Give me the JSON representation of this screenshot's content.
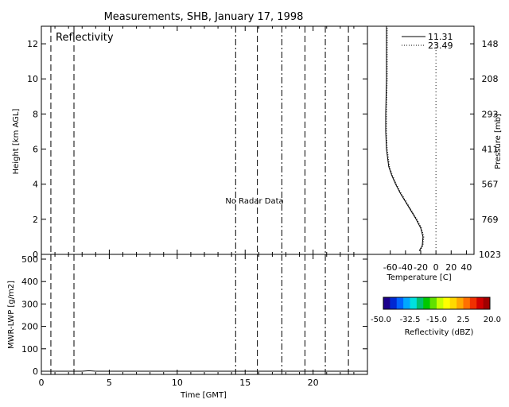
{
  "title": "Measurements, SHB, January 17, 1998",
  "chart_data": [
    {
      "type": "line",
      "panel": "reflectivity",
      "label": "Reflectivity",
      "annotation": "No Radar Data",
      "xlabel": "",
      "ylabel": "Height [km AGL]",
      "xlim": [
        0,
        24
      ],
      "ylim": [
        0,
        13
      ],
      "yticks": [
        0,
        2,
        4,
        6,
        8,
        10,
        12
      ],
      "dashed_lines_x": [
        0.7,
        2.4,
        14.3,
        15.9,
        17.7,
        19.4,
        20.9,
        22.6
      ]
    },
    {
      "type": "line",
      "panel": "lwp",
      "xlabel": "Time [GMT]",
      "ylabel": "MWR-LWP [g/m2]",
      "xlim": [
        0,
        24
      ],
      "ylim": [
        0,
        500
      ],
      "xticks": [
        0,
        5,
        10,
        15,
        20
      ],
      "yticks": [
        0,
        100,
        200,
        300,
        400,
        500
      ],
      "dashed_lines_x": [
        0.7,
        2.4,
        14.3,
        15.9,
        17.7,
        19.4,
        20.9,
        22.6
      ],
      "series": [
        {
          "x": [
            0,
            3,
            3.5,
            4,
            6,
            8,
            10,
            12,
            14,
            16,
            18,
            20,
            22,
            24
          ],
          "values": [
            0,
            0,
            2,
            0,
            0,
            0,
            0,
            0,
            0,
            0,
            0,
            0,
            0,
            0
          ]
        }
      ]
    },
    {
      "type": "line",
      "panel": "temperature-profile",
      "xlabel": "Temperature [C]",
      "ylabel": "",
      "y2label": "Pressure [mb]",
      "xlim": [
        -90,
        50
      ],
      "ylim": [
        0,
        13
      ],
      "xticks": [
        -60,
        -40,
        -20,
        0,
        20,
        40
      ],
      "pressure_ticks": [
        {
          "h": 0,
          "label": "1023"
        },
        {
          "h": 2,
          "label": "769"
        },
        {
          "h": 4,
          "label": "567"
        },
        {
          "h": 6,
          "label": "411"
        },
        {
          "h": 8,
          "label": "293"
        },
        {
          "h": 10,
          "label": "208"
        },
        {
          "h": 12,
          "label": "148"
        }
      ],
      "zero_line_x": 0,
      "series": [
        {
          "name": "11.31",
          "style": "solid",
          "x": [
            -22,
            -18,
            -17,
            -20,
            -26,
            -33,
            -40,
            -47,
            -53,
            -58,
            -62,
            -65,
            -66,
            -66,
            -65,
            -65
          ],
          "y": [
            0.2,
            0.5,
            1,
            1.5,
            2,
            2.5,
            3,
            3.5,
            4,
            4.5,
            5,
            6,
            7,
            8,
            10,
            13
          ]
        },
        {
          "name": "23.49",
          "style": "dotted",
          "x": [
            -21,
            -17,
            -16,
            -19,
            -25,
            -32,
            -39,
            -46,
            -52,
            -57,
            -61,
            -64,
            -65,
            -65,
            -64,
            -64
          ],
          "y": [
            0.2,
            0.5,
            1,
            1.5,
            2,
            2.5,
            3,
            3.5,
            4,
            4.5,
            5,
            6,
            7,
            8,
            10,
            13
          ]
        }
      ]
    }
  ],
  "colorbar": {
    "title": "Reflectivity (dBZ)",
    "tick_labels": [
      "-50.0",
      "-32.5",
      "-15.0",
      "2.5",
      "20.0"
    ],
    "colors": [
      "#1c008c",
      "#0028d2",
      "#0064ff",
      "#00a8ff",
      "#00e0e0",
      "#00c070",
      "#00c800",
      "#60e000",
      "#c8ff00",
      "#ffff00",
      "#ffd800",
      "#ffa800",
      "#ff7000",
      "#f03000",
      "#d00000",
      "#a00000"
    ]
  }
}
